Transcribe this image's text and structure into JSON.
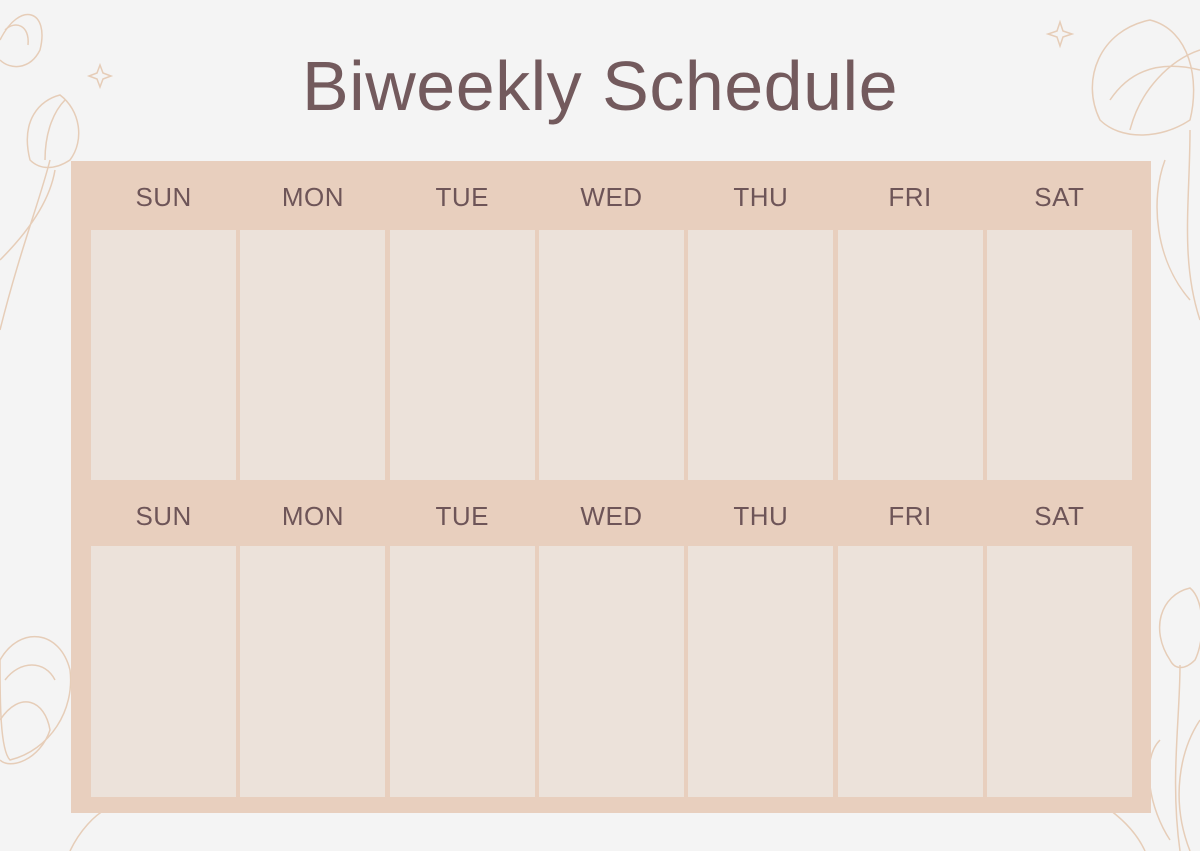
{
  "title": "Biweekly Schedule",
  "weeks": [
    {
      "days": [
        "SUN",
        "MON",
        "TUE",
        "WED",
        "THU",
        "FRI",
        "SAT"
      ]
    },
    {
      "days": [
        "SUN",
        "MON",
        "TUE",
        "WED",
        "THU",
        "FRI",
        "SAT"
      ]
    }
  ],
  "colors": {
    "background": "#f4f4f4",
    "frame": "#e8cfbe",
    "cell": "#ece2da",
    "text": "#6e5558"
  }
}
